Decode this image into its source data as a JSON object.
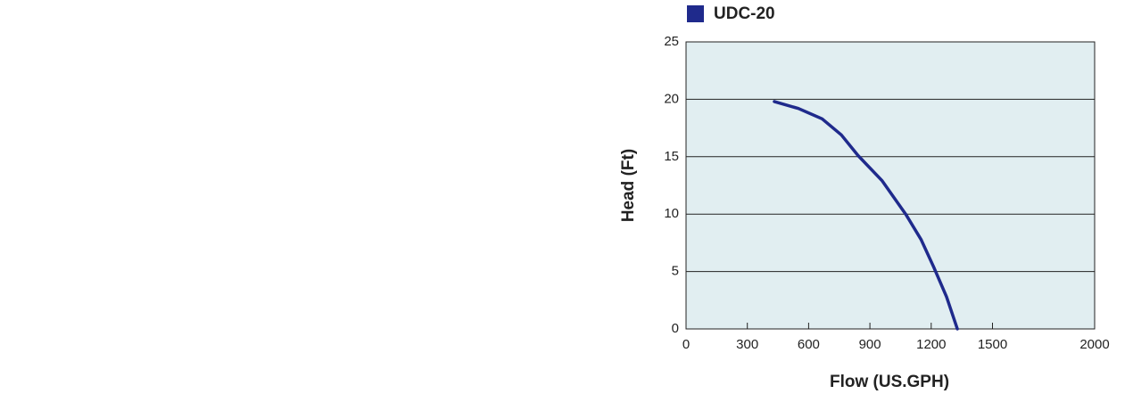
{
  "chart_data": {
    "type": "line",
    "legend_label": "UDC-20",
    "x_label": "Flow (US.GPH)",
    "y_label": "Head (Ft)",
    "xlim": [
      0,
      2000
    ],
    "xticks": [
      0,
      300,
      600,
      900,
      1200,
      1500,
      2000
    ],
    "ylim": [
      0,
      25
    ],
    "yticks": [
      0,
      5,
      10,
      15,
      20,
      25
    ],
    "grid": true,
    "series": [
      {
        "name": "UDC-20",
        "color": "#1f2a8c",
        "x": [
          432,
          550,
          666,
          760,
          842,
          960,
          1075,
          1150,
          1212,
          1275,
          1328
        ],
        "values": [
          19.8,
          19.2,
          18.3,
          16.9,
          15.1,
          12.9,
          10.0,
          7.8,
          5.4,
          2.8,
          0
        ]
      }
    ]
  }
}
